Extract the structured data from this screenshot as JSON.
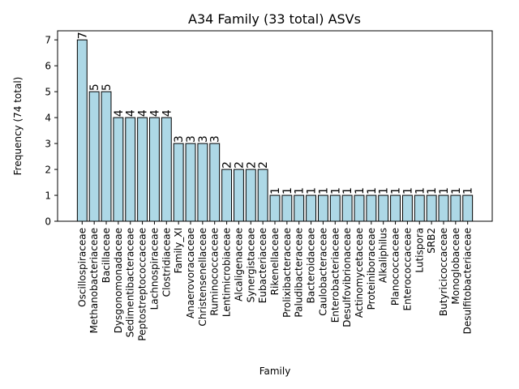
{
  "chart_data": {
    "type": "bar",
    "title": "A34 Family (33 total) ASVs",
    "xlabel": "Family",
    "ylabel": "Frequency (74 total)",
    "ylim": [
      0,
      7.35
    ],
    "yticks": [
      0,
      1,
      2,
      3,
      4,
      5,
      6,
      7
    ],
    "grid": false,
    "bar_color": "#add8e6",
    "edge_color": "#000000",
    "categories": [
      "Oscillospiraceae",
      "Methanobacteriaceae",
      "Bacillaceae",
      "Dysgonomonadaceae",
      "Sedimentibacteraceae",
      "Peptostreptococcaceae",
      "Lachnospiraceae",
      "Clostridiaceae",
      "Family_XI",
      "Anaerovoracaceae",
      "Christensenellaceae",
      "Ruminococcaceae",
      "Lentimicrobiaceae",
      "Alcaligenaceae",
      "Synergistaceae",
      "Eubacteriaceae",
      "Rikenellaceae",
      "Prolixibacteraceae",
      "Paludibacteraceae",
      "Bacteroidaceae",
      "Caulobacteraceae",
      "Enterobacteriaceae",
      "Desulfovibrionaceae",
      "Actinomycetaceae",
      "Proteiniboraceae",
      "Alkaliphilus",
      "Planococcaceae",
      "Enterococcaceae",
      "Lutispora",
      "SRB2",
      "Butyricicoccaceae",
      "Monoglobaceae",
      "Desulfitobacteriaceae"
    ],
    "values": [
      7,
      5,
      5,
      4,
      4,
      4,
      4,
      4,
      3,
      3,
      3,
      3,
      2,
      2,
      2,
      2,
      1,
      1,
      1,
      1,
      1,
      1,
      1,
      1,
      1,
      1,
      1,
      1,
      1,
      1,
      1,
      1,
      1
    ]
  }
}
